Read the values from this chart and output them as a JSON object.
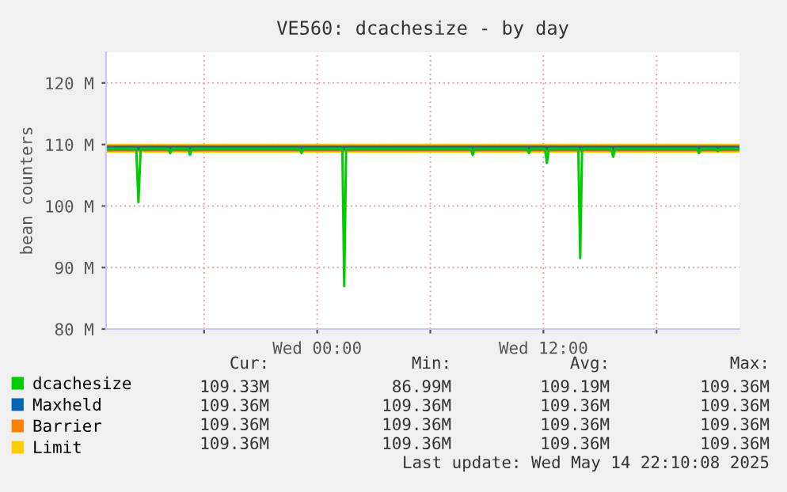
{
  "chart_data": {
    "type": "line",
    "title": "VE560: dcachesize - by day",
    "ylabel": "bean counters",
    "x": [
      "2025-05-13T12:48",
      "2025-05-13T14:24",
      "2025-05-13T14:31",
      "2025-05-13T14:38",
      "2025-05-13T16:06",
      "2025-05-13T16:12",
      "2025-05-13T16:18",
      "2025-05-13T17:09",
      "2025-05-13T17:15",
      "2025-05-13T17:21",
      "2025-05-13T23:04",
      "2025-05-13T23:10",
      "2025-05-13T23:16",
      "2025-05-14T01:20",
      "2025-05-14T01:26",
      "2025-05-14T01:32",
      "2025-05-14T08:09",
      "2025-05-14T08:15",
      "2025-05-14T08:21",
      "2025-05-14T11:08",
      "2025-05-14T11:14",
      "2025-05-14T11:20",
      "2025-05-14T12:05",
      "2025-05-14T12:11",
      "2025-05-14T12:17",
      "2025-05-14T13:51",
      "2025-05-14T13:57",
      "2025-05-14T14:03",
      "2025-05-14T15:36",
      "2025-05-14T15:42",
      "2025-05-14T15:48",
      "2025-05-14T20:09",
      "2025-05-14T20:15",
      "2025-05-14T20:21",
      "2025-05-14T21:09",
      "2025-05-14T21:15",
      "2025-05-14T21:21",
      "2025-05-14T22:24"
    ],
    "series": [
      {
        "name": "Limit",
        "color": "#ffcc00",
        "x": [
          "2025-05-13T12:48",
          "2025-05-14T22:24"
        ],
        "values": [
          109.4,
          109.4
        ]
      },
      {
        "name": "Barrier",
        "color": "#ff7f00",
        "x": [
          "2025-05-13T12:48",
          "2025-05-14T22:24"
        ],
        "values": [
          109.4,
          109.4
        ]
      },
      {
        "name": "Maxheld",
        "color": "#0066b3",
        "x": [
          "2025-05-13T12:48",
          "2025-05-14T22:24"
        ],
        "values": [
          109.4,
          109.4
        ]
      },
      {
        "name": "dcachesize",
        "color": "#00cc00",
        "values": [
          109.3,
          109.3,
          100.6,
          109.3,
          109.3,
          108.6,
          109.3,
          109.3,
          108.3,
          109.3,
          109.3,
          108.6,
          109.3,
          109.3,
          86.99,
          109.3,
          109.3,
          108.3,
          109.3,
          109.3,
          108.6,
          109.3,
          109.3,
          107.0,
          109.3,
          109.3,
          91.5,
          109.3,
          109.3,
          108.0,
          109.3,
          109.3,
          108.6,
          109.3,
          109.3,
          108.9,
          109.3,
          109.3
        ]
      }
    ],
    "xlim": [
      "2025-05-13T12:48",
      "2025-05-14T22:24"
    ],
    "xticks": [
      {
        "value": "2025-05-13T18:00",
        "label": null
      },
      {
        "value": "2025-05-14T00:00",
        "label": "Wed 00:00"
      },
      {
        "value": "2025-05-14T06:00",
        "label": null
      },
      {
        "value": "2025-05-14T12:00",
        "label": "Wed 12:00"
      },
      {
        "value": "2025-05-14T18:00",
        "label": null
      }
    ],
    "ylim": [
      80,
      125
    ],
    "yticks": [
      {
        "value": 80,
        "label": "80 M"
      },
      {
        "value": 90,
        "label": "90 M"
      },
      {
        "value": 100,
        "label": "100 M"
      },
      {
        "value": 110,
        "label": "110 M"
      },
      {
        "value": 120,
        "label": "120 M"
      }
    ],
    "grid": true,
    "legend": "bottom",
    "annotations": [
      "Cur:",
      "Min:",
      "Avg:",
      "Max:",
      "109.33M",
      "86.99M",
      "109.19M",
      "109.36M",
      "109.36M",
      "109.36M",
      "109.36M",
      "109.36M",
      "109.36M",
      "109.36M",
      "109.36M",
      "109.36M",
      "109.36M",
      "109.36M",
      "109.36M",
      "109.36M",
      "Last update: Wed May 14 22:10:08 2025"
    ]
  }
}
